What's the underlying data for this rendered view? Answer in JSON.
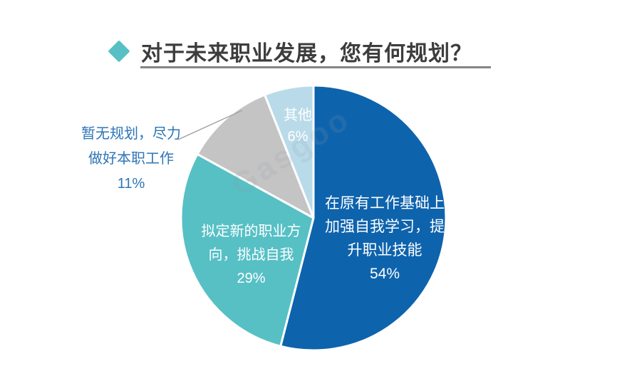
{
  "header": {
    "title": "对于未来职业发展，您有何规划？",
    "accent_color": "#56c0c5"
  },
  "watermark": {
    "text": "Gasgoo"
  },
  "chart_data": {
    "type": "pie",
    "title": "对于未来职业发展，您有何规划？",
    "categories": [
      "在原有工作基础上加强自我学习，提升职业技能",
      "拟定新的职业方向，挑战自我",
      "暂无规划，尽力做好本职工作",
      "其他"
    ],
    "values": [
      54,
      29,
      11,
      6
    ],
    "unit": "%",
    "colors": [
      "#0e63ad",
      "#56c0c5",
      "#c4c4c5",
      "#b9dbe9"
    ],
    "start_angle_deg": 0,
    "direction": "clockwise",
    "legend": "none",
    "label_color_inside": "#ffffff",
    "label_color_outside": "#2e75b6",
    "labels": [
      {
        "text": "在原有工作基础上\n加强自我学习，提\n升职业技能\n54%",
        "placement": "inside"
      },
      {
        "text": "拟定新的职业方\n向，挑战自我\n29%",
        "placement": "inside"
      },
      {
        "text": "暂无规划，尽力\n做好本职工作\n11%",
        "placement": "outside"
      },
      {
        "text": "其他\n6%",
        "placement": "inside"
      }
    ]
  }
}
